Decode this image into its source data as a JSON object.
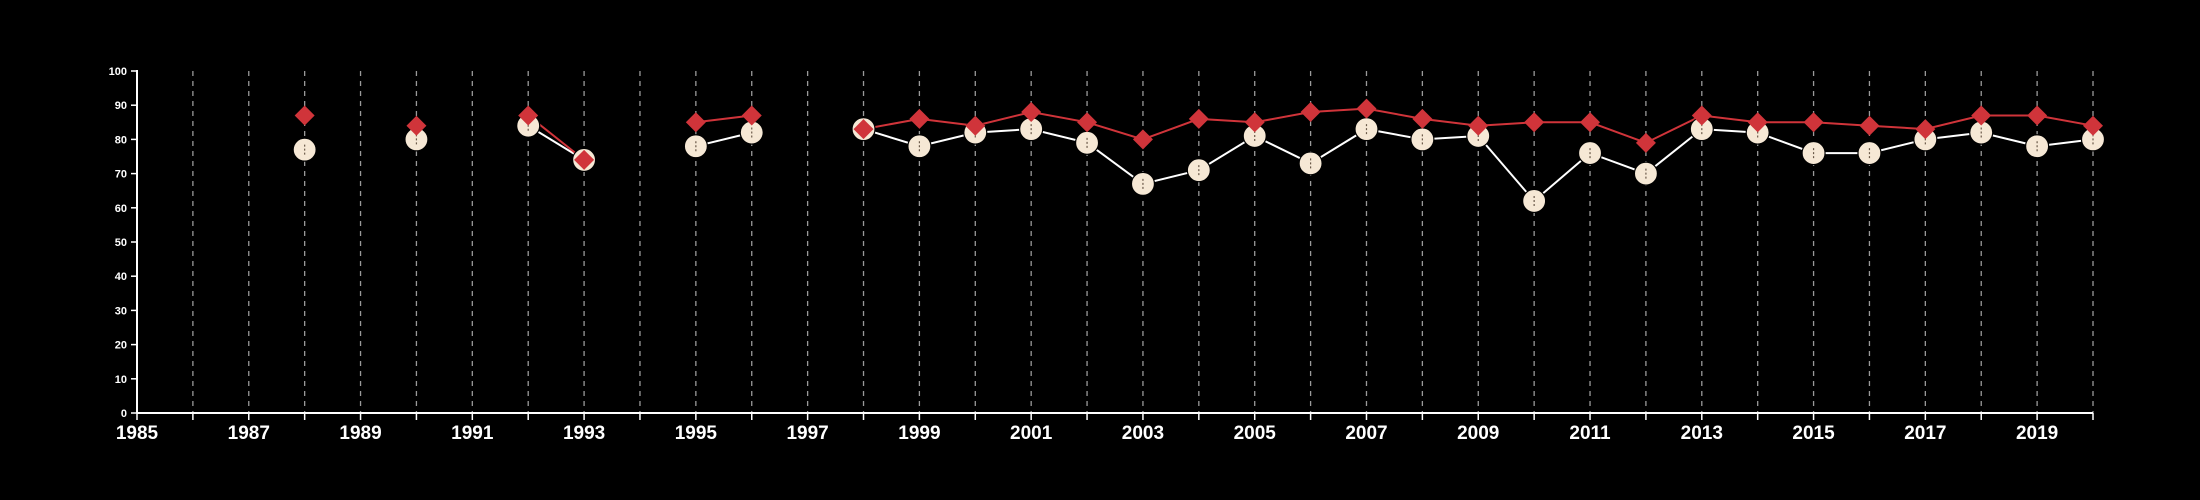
{
  "colors": {
    "background": "#000000",
    "axis": "#ffffff",
    "grid": "#9a9a9a",
    "series_circle": "#f6e8d5",
    "series_circle_line": "#ffffff",
    "series_diamond": "#d0343a"
  },
  "chart_data": {
    "type": "line",
    "title": "",
    "xlabel": "",
    "ylabel": "",
    "xlim": [
      1985,
      2020
    ],
    "ylim": [
      0,
      100
    ],
    "x_ticks": [
      1985,
      1987,
      1989,
      1991,
      1993,
      1995,
      1997,
      1999,
      2001,
      2003,
      2005,
      2007,
      2009,
      2011,
      2013,
      2015,
      2017,
      2019
    ],
    "y_ticks": [
      0,
      10,
      20,
      30,
      40,
      50,
      60,
      70,
      80,
      90,
      100
    ],
    "grid": {
      "vertical_dashed_each_year": true,
      "horizontal": false
    },
    "legend": "none",
    "series": [
      {
        "marker": "circle",
        "color": "#f6e8d5",
        "points": [
          [
            1988,
            77
          ],
          [
            1990,
            80
          ],
          [
            1992,
            84
          ],
          [
            1993,
            74
          ],
          [
            1995,
            78
          ],
          [
            1996,
            82
          ],
          [
            1998,
            83
          ],
          [
            1999,
            78
          ],
          [
            2000,
            82
          ],
          [
            2001,
            83
          ],
          [
            2002,
            79
          ],
          [
            2003,
            67
          ],
          [
            2004,
            71
          ],
          [
            2005,
            81
          ],
          [
            2006,
            73
          ],
          [
            2007,
            83
          ],
          [
            2008,
            80
          ],
          [
            2009,
            81
          ],
          [
            2010,
            62
          ],
          [
            2011,
            76
          ],
          [
            2012,
            70
          ],
          [
            2013,
            83
          ],
          [
            2014,
            82
          ],
          [
            2015,
            76
          ],
          [
            2016,
            76
          ],
          [
            2017,
            80
          ],
          [
            2018,
            82
          ],
          [
            2019,
            78
          ],
          [
            2020,
            80
          ]
        ]
      },
      {
        "marker": "diamond",
        "color": "#d0343a",
        "points": [
          [
            1988,
            87
          ],
          [
            1990,
            84
          ],
          [
            1992,
            87
          ],
          [
            1993,
            74
          ],
          [
            1995,
            85
          ],
          [
            1996,
            87
          ],
          [
            1998,
            83
          ],
          [
            1999,
            86
          ],
          [
            2000,
            84
          ],
          [
            2001,
            88
          ],
          [
            2002,
            85
          ],
          [
            2003,
            80
          ],
          [
            2004,
            86
          ],
          [
            2005,
            85
          ],
          [
            2006,
            88
          ],
          [
            2007,
            89
          ],
          [
            2008,
            86
          ],
          [
            2009,
            84
          ],
          [
            2010,
            85
          ],
          [
            2011,
            85
          ],
          [
            2012,
            79
          ],
          [
            2013,
            87
          ],
          [
            2014,
            85
          ],
          [
            2015,
            85
          ],
          [
            2016,
            84
          ],
          [
            2017,
            83
          ],
          [
            2018,
            87
          ],
          [
            2019,
            87
          ],
          [
            2020,
            84
          ]
        ]
      }
    ]
  }
}
